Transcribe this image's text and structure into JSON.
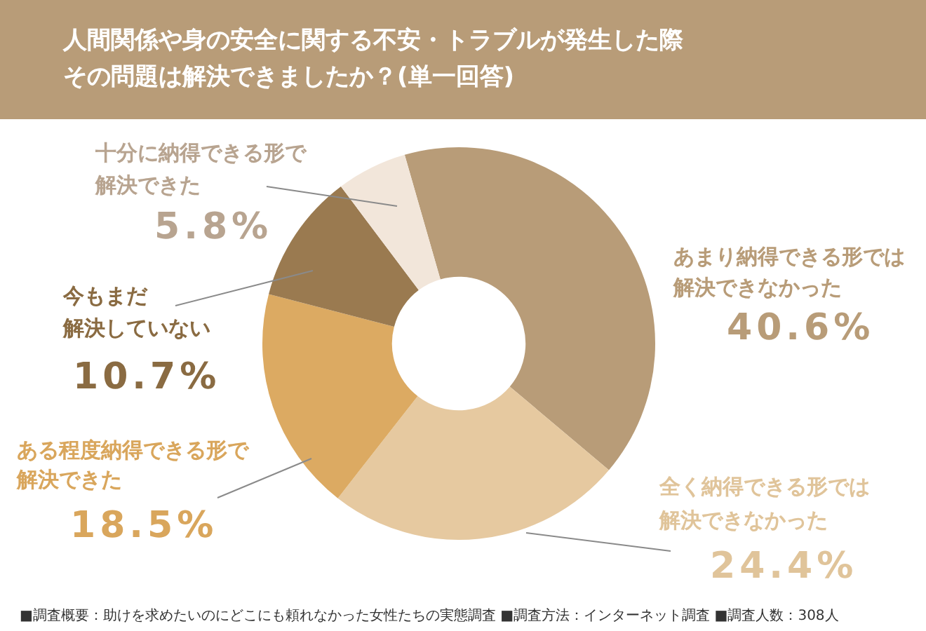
{
  "chart_data": {
    "type": "donut",
    "title": "人間関係や身の安全に関する不安・トラブルが発生した際その問題は解決できましたか？(単一回答)",
    "categories": [
      "あまり納得できる形では解決できなかった",
      "全く納得できる形では解決できなかった",
      "ある程度納得できる形で解決できた",
      "今もまだ解決していない",
      "十分に納得できる形で解決できた"
    ],
    "values": [
      40.6,
      24.4,
      18.5,
      10.7,
      5.8
    ],
    "colors": [
      "#b89c78",
      "#e6c9a0",
      "#dcaa62",
      "#9a7a50",
      "#f2e6da"
    ],
    "value_labels": [
      "40.6%",
      "24.4%",
      "18.5%",
      "10.7%",
      "5.8%"
    ],
    "legend": false,
    "annotations": [
      "■調査概要：助けを求めたいのにどこにも頼れなかった女性たちの実態調査 ■調査方法：インターネット調査 ■調査人数：308人"
    ]
  }
}
